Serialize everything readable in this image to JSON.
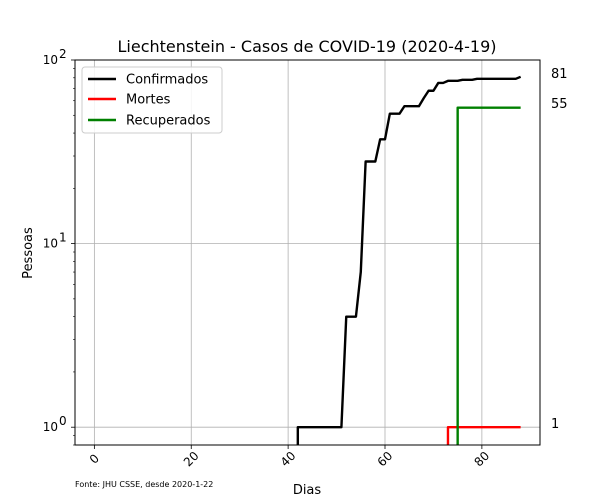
{
  "chart_data": {
    "type": "line",
    "title": "Liechtenstein - Casos de COVID-19 (2020-4-19)",
    "xlabel": "Dias",
    "ylabel": "Pessoas",
    "xlim": [
      -4,
      92
    ],
    "ylim": [
      0.8,
      100
    ],
    "yscale": "log",
    "grid": true,
    "legend_position": "top-left",
    "x_ticks": [
      0,
      20,
      40,
      60,
      80
    ],
    "x_tick_labels": [
      "0",
      "20",
      "40",
      "60",
      "80"
    ],
    "y_ticks": [
      1,
      10,
      100
    ],
    "y_tick_base": "10",
    "y_tick_exponents": [
      "0",
      "1",
      "2"
    ],
    "source_note": "Fonte: JHU CSSE, desde 2020-1-22",
    "series": [
      {
        "name": "Confirmados",
        "color": "#000000",
        "end_label": "81",
        "x": [
          42,
          43,
          44,
          45,
          46,
          47,
          48,
          49,
          50,
          51,
          52,
          53,
          54,
          55,
          56,
          57,
          58,
          59,
          60,
          61,
          62,
          63,
          64,
          65,
          66,
          67,
          68,
          69,
          70,
          71,
          72,
          73,
          74,
          75,
          76,
          77,
          78,
          79,
          80,
          81,
          82,
          83,
          84,
          85,
          86,
          87,
          88
        ],
        "y": [
          1,
          1,
          1,
          1,
          1,
          1,
          1,
          1,
          1,
          1,
          4,
          4,
          4,
          7,
          28,
          28,
          28,
          37,
          37,
          51,
          51,
          51,
          56,
          56,
          56,
          56,
          62,
          68,
          68,
          75,
          75,
          77,
          77,
          77,
          78,
          78,
          78,
          79,
          79,
          79,
          79,
          79,
          79,
          79,
          79,
          79,
          81
        ]
      },
      {
        "name": "Mortes",
        "color": "#ff0000",
        "end_label": "1",
        "x": [
          73,
          74,
          75,
          76,
          77,
          78,
          79,
          80,
          81,
          82,
          83,
          84,
          85,
          86,
          87,
          88
        ],
        "y": [
          1,
          1,
          1,
          1,
          1,
          1,
          1,
          1,
          1,
          1,
          1,
          1,
          1,
          1,
          1,
          1
        ]
      },
      {
        "name": "Recuperados",
        "color": "#008000",
        "end_label": "55",
        "x": [
          75,
          76,
          77,
          78,
          79,
          80,
          81,
          82,
          83,
          84,
          85,
          86,
          87,
          88
        ],
        "y": [
          55,
          55,
          55,
          55,
          55,
          55,
          55,
          55,
          55,
          55,
          55,
          55,
          55,
          55
        ]
      }
    ]
  }
}
